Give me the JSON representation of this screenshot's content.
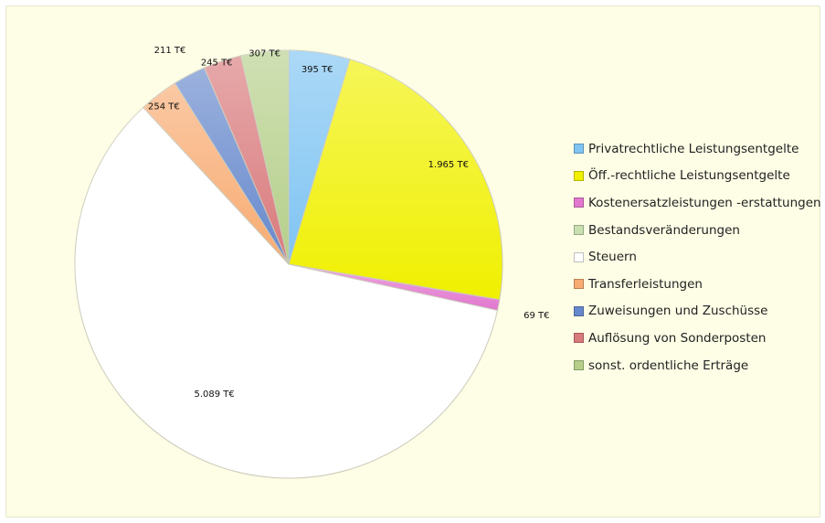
{
  "chart_data": {
    "type": "pie",
    "title": "",
    "legend_position": "right",
    "unit": "T€",
    "slices": [
      {
        "name": "Privatrechtliche Leistungsentgelte",
        "value": 395,
        "label": "395 T€",
        "color": "#7fc4f2"
      },
      {
        "name": "Öff.-rechtliche Leistungsentgelte",
        "value": 1965,
        "label": "1.965 T€",
        "color": "#f0f000"
      },
      {
        "name": "Kostenersatzleistungen -erstattungen",
        "value": 69,
        "label": "69 T€",
        "color": "#e277cf"
      },
      {
        "name": "Bestandsveränderungen",
        "value": 0,
        "label": "",
        "color": "#c8e0b0"
      },
      {
        "name": "Steuern",
        "value": 5089,
        "label": "5.089 T€",
        "color": "#ffffff"
      },
      {
        "name": "Transferleistungen",
        "value": 254,
        "label": "254 T€",
        "color": "#f8ab72"
      },
      {
        "name": "Zuweisungen und Zuschüsse",
        "value": 211,
        "label": "211 T€",
        "color": "#6688cc"
      },
      {
        "name": "Auflösung von Sonderposten",
        "value": 245,
        "label": "245 T€",
        "color": "#d97a7c"
      },
      {
        "name": "sonst. ordentliche Erträge",
        "value": 307,
        "label": "307 T€",
        "color": "#b5cf8a"
      }
    ]
  }
}
